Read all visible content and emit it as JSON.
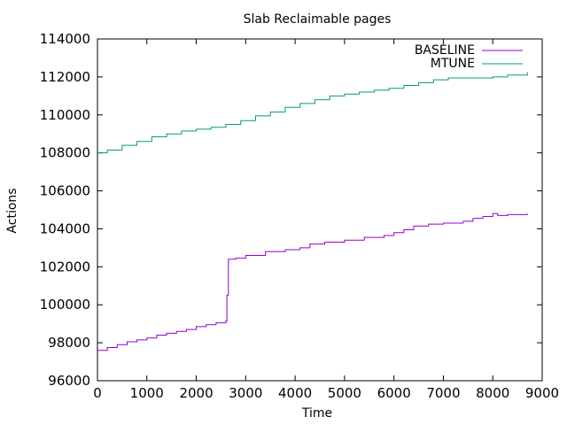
{
  "chart_data": {
    "type": "line",
    "title": "Slab Reclaimable pages",
    "xlabel": "Time",
    "ylabel": "Actions",
    "xlim": [
      0,
      9000
    ],
    "ylim": [
      96000,
      114000
    ],
    "xticks": [
      "0",
      "1000",
      "2000",
      "3000",
      "4000",
      "5000",
      "6000",
      "7000",
      "8000",
      "9000"
    ],
    "yticks": [
      "96000",
      "98000",
      "100000",
      "102000",
      "104000",
      "106000",
      "108000",
      "110000",
      "112000",
      "114000"
    ],
    "grid": false,
    "legend_position": "top-right",
    "series": [
      {
        "name": "BASELINE",
        "color": "#9400d3",
        "x": [
          0,
          200,
          400,
          600,
          800,
          1000,
          1200,
          1400,
          1600,
          1800,
          2000,
          2200,
          2400,
          2600,
          2620,
          2650,
          2800,
          3000,
          3400,
          3800,
          4100,
          4300,
          4600,
          5000,
          5400,
          5800,
          6000,
          6200,
          6400,
          6700,
          7000,
          7400,
          7600,
          7800,
          8000,
          8100,
          8300,
          8700
        ],
        "y": [
          97600,
          97750,
          97900,
          98050,
          98150,
          98250,
          98400,
          98500,
          98600,
          98700,
          98850,
          98950,
          99050,
          99150,
          100500,
          102400,
          102450,
          102600,
          102800,
          102900,
          103000,
          103200,
          103300,
          103400,
          103550,
          103650,
          103800,
          103950,
          104150,
          104250,
          104300,
          104400,
          104550,
          104650,
          104800,
          104700,
          104750,
          104800
        ]
      },
      {
        "name": "MTUNE",
        "color": "#009e73",
        "x": [
          0,
          200,
          500,
          800,
          1100,
          1400,
          1700,
          2000,
          2300,
          2600,
          2900,
          3200,
          3500,
          3800,
          4100,
          4400,
          4700,
          5000,
          5300,
          5600,
          5900,
          6200,
          6500,
          6800,
          7100,
          7400,
          7700,
          8000,
          8300,
          8700
        ],
        "y": [
          108000,
          108150,
          108400,
          108600,
          108850,
          109000,
          109150,
          109250,
          109350,
          109500,
          109700,
          109950,
          110150,
          110400,
          110600,
          110800,
          111000,
          111100,
          111200,
          111300,
          111400,
          111550,
          111700,
          111850,
          111950,
          111950,
          111950,
          112000,
          112100,
          112250
        ]
      }
    ]
  }
}
